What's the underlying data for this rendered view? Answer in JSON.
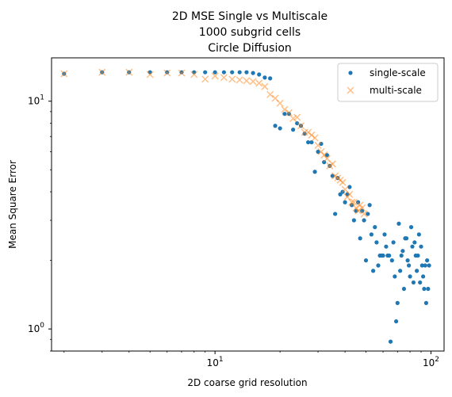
{
  "chart_data": {
    "type": "scatter",
    "title": [
      "2D MSE Single vs Multiscale",
      "1000 subgrid cells",
      "Circle Diffusion"
    ],
    "xlabel": "2D coarse grid resolution",
    "ylabel": "Mean Square Error",
    "xscale": "log",
    "yscale": "log",
    "xlim": [
      1.75,
      115
    ],
    "ylim": [
      0.8,
      15.5
    ],
    "x_ticks": [
      {
        "value": 10,
        "base": "10",
        "exp": "1"
      },
      {
        "value": 100,
        "base": "10",
        "exp": "2"
      }
    ],
    "y_ticks": [
      {
        "value": 1,
        "base": "10",
        "exp": "0"
      },
      {
        "value": 10,
        "base": "10",
        "exp": "1"
      }
    ],
    "legend": {
      "position": "upper right"
    },
    "series": [
      {
        "name": "single-scale",
        "marker": "dot",
        "color": "#1f77b4",
        "points": [
          [
            2,
            13.2
          ],
          [
            3,
            13.4
          ],
          [
            4,
            13.4
          ],
          [
            5,
            13.4
          ],
          [
            6,
            13.4
          ],
          [
            7,
            13.4
          ],
          [
            8,
            13.4
          ],
          [
            9,
            13.4
          ],
          [
            10,
            13.4
          ],
          [
            11,
            13.4
          ],
          [
            12,
            13.4
          ],
          [
            13,
            13.4
          ],
          [
            14,
            13.4
          ],
          [
            15,
            13.3
          ],
          [
            16,
            13.1
          ],
          [
            17,
            12.7
          ],
          [
            18,
            12.6
          ],
          [
            19,
            7.8
          ],
          [
            20,
            7.6
          ],
          [
            21,
            8.8
          ],
          [
            22,
            8.8
          ],
          [
            23,
            7.5
          ],
          [
            24,
            8.0
          ],
          [
            25,
            7.8
          ],
          [
            26,
            7.2
          ],
          [
            27,
            6.6
          ],
          [
            28,
            6.6
          ],
          [
            29,
            4.9
          ],
          [
            30,
            6.0
          ],
          [
            31,
            6.5
          ],
          [
            32,
            5.4
          ],
          [
            33,
            5.8
          ],
          [
            34,
            5.2
          ],
          [
            35,
            4.7
          ],
          [
            36,
            3.2
          ],
          [
            37,
            4.6
          ],
          [
            38,
            3.9
          ],
          [
            39,
            4.0
          ],
          [
            40,
            3.6
          ],
          [
            41,
            3.9
          ],
          [
            42,
            4.2
          ],
          [
            43,
            3.5
          ],
          [
            44,
            3.0
          ],
          [
            45,
            3.3
          ],
          [
            46,
            3.6
          ],
          [
            47,
            2.5
          ],
          [
            48,
            3.3
          ],
          [
            49,
            3.0
          ],
          [
            50,
            2.0
          ],
          [
            51,
            3.2
          ],
          [
            52,
            3.5
          ],
          [
            53,
            2.6
          ],
          [
            54,
            1.8
          ],
          [
            55,
            2.8
          ],
          [
            56,
            2.4
          ],
          [
            57,
            1.9
          ],
          [
            58,
            2.1
          ],
          [
            59,
            2.1
          ],
          [
            60,
            2.1
          ],
          [
            61,
            2.6
          ],
          [
            62,
            2.3
          ],
          [
            63,
            2.1
          ],
          [
            64,
            2.1
          ],
          [
            65,
            0.88
          ],
          [
            66,
            2.0
          ],
          [
            67,
            2.4
          ],
          [
            68,
            1.7
          ],
          [
            69,
            1.08
          ],
          [
            70,
            1.3
          ],
          [
            71,
            2.9
          ],
          [
            72,
            1.8
          ],
          [
            73,
            2.1
          ],
          [
            74,
            2.2
          ],
          [
            75,
            1.5
          ],
          [
            76,
            2.5
          ],
          [
            77,
            2.5
          ],
          [
            78,
            2.0
          ],
          [
            79,
            1.9
          ],
          [
            80,
            1.7
          ],
          [
            81,
            2.8
          ],
          [
            82,
            2.3
          ],
          [
            83,
            1.6
          ],
          [
            84,
            2.4
          ],
          [
            85,
            2.1
          ],
          [
            86,
            1.8
          ],
          [
            87,
            2.1
          ],
          [
            88,
            2.6
          ],
          [
            89,
            1.6
          ],
          [
            90,
            2.3
          ],
          [
            91,
            1.9
          ],
          [
            92,
            1.7
          ],
          [
            93,
            1.5
          ],
          [
            94,
            1.9
          ],
          [
            95,
            1.3
          ],
          [
            96,
            2.0
          ],
          [
            97,
            1.5
          ],
          [
            98,
            1.9
          ]
        ]
      },
      {
        "name": "multi-scale",
        "marker": "x",
        "color": "#ff7f0e",
        "points": [
          [
            2,
            13.2
          ],
          [
            3,
            13.4
          ],
          [
            4,
            13.4
          ],
          [
            5,
            13.1
          ],
          [
            6,
            13.3
          ],
          [
            7,
            13.3
          ],
          [
            8,
            13.1
          ],
          [
            9,
            12.5
          ],
          [
            10,
            12.9
          ],
          [
            11,
            12.7
          ],
          [
            12,
            12.5
          ],
          [
            13,
            12.4
          ],
          [
            14,
            12.3
          ],
          [
            15,
            12.2
          ],
          [
            16,
            12.0
          ],
          [
            17,
            11.6
          ],
          [
            18,
            10.7
          ],
          [
            19,
            10.3
          ],
          [
            20,
            9.8
          ],
          [
            21,
            9.2
          ],
          [
            22,
            8.9
          ],
          [
            23,
            8.4
          ],
          [
            24,
            8.5
          ],
          [
            25,
            7.8
          ],
          [
            26,
            7.3
          ],
          [
            27,
            7.3
          ],
          [
            28,
            7.1
          ],
          [
            29,
            6.9
          ],
          [
            30,
            6.4
          ],
          [
            31,
            6.0
          ],
          [
            32,
            5.8
          ],
          [
            33,
            5.6
          ],
          [
            34,
            5.2
          ],
          [
            35,
            5.3
          ],
          [
            36,
            4.7
          ],
          [
            37,
            4.6
          ],
          [
            38,
            4.5
          ],
          [
            39,
            4.4
          ],
          [
            40,
            4.1
          ],
          [
            41,
            3.8
          ],
          [
            42,
            3.9
          ],
          [
            43,
            3.6
          ],
          [
            44,
            3.6
          ],
          [
            45,
            3.4
          ],
          [
            46,
            3.3
          ],
          [
            47,
            3.5
          ],
          [
            48,
            3.4
          ],
          [
            49,
            3.2
          ]
        ]
      }
    ]
  }
}
